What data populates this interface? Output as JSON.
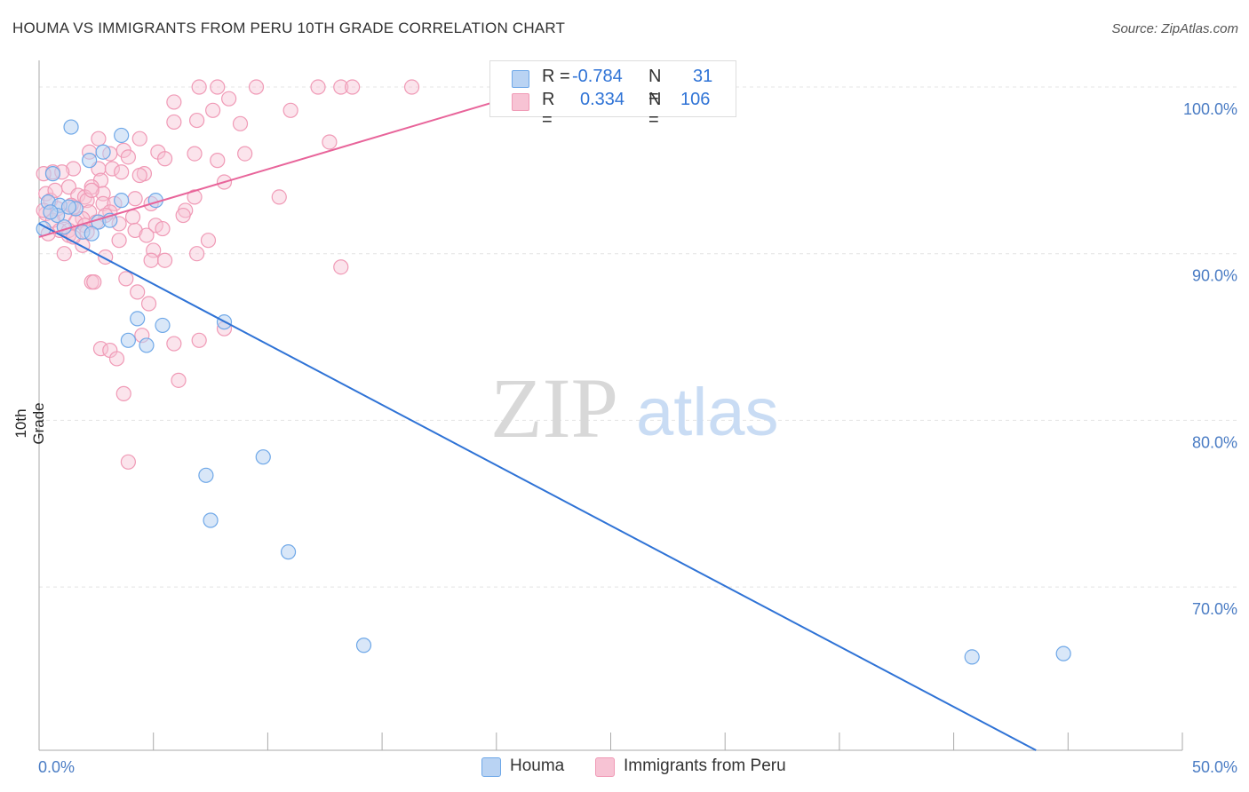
{
  "title": "HOUMA VS IMMIGRANTS FROM PERU 10TH GRADE CORRELATION CHART",
  "source": "Source: ZipAtlas.com",
  "watermark": {
    "zip": "ZIP",
    "atlas": "atlas"
  },
  "colors": {
    "blue": "#6fa8e8",
    "blue_fill": "#b9d3f3",
    "blue_line": "#2f73d6",
    "pink": "#f09ab6",
    "pink_fill": "#f7c3d4",
    "pink_line": "#e8649a",
    "tick_text": "#4a7cc4"
  },
  "legend": {
    "rows": [
      {
        "r_label": "R =",
        "r_value": "-0.784",
        "n_label": "N =",
        "n_value": "31"
      },
      {
        "r_label": "R =",
        "r_value": "0.334",
        "n_label": "N =",
        "n_value": "106"
      }
    ]
  },
  "bottom_legend": {
    "series1": "Houma",
    "series2": "Immigrants from Peru"
  },
  "chart_data": {
    "type": "scatter",
    "title": "HOUMA VS IMMIGRANTS FROM PERU 10TH GRADE CORRELATION CHART",
    "xlabel": "",
    "ylabel": "10th Grade",
    "xlim": [
      0,
      50
    ],
    "ylim": [
      60.2,
      101.6
    ],
    "x_tick_labels": [
      "0.0%",
      "50.0%"
    ],
    "y_ticks": [
      70,
      80,
      90,
      100
    ],
    "y_tick_labels": [
      "70.0%",
      "80.0%",
      "90.0%",
      "100.0%"
    ],
    "series": [
      {
        "name": "Houma",
        "r": -0.784,
        "n": 31,
        "trend": [
          [
            0,
            91.8
          ],
          [
            43.6,
            60.2
          ]
        ],
        "points": [
          [
            1.4,
            97.6
          ],
          [
            3.6,
            97.1
          ],
          [
            2.2,
            95.6
          ],
          [
            2.8,
            96.1
          ],
          [
            0.6,
            94.8
          ],
          [
            0.4,
            93.1
          ],
          [
            0.9,
            92.9
          ],
          [
            1.6,
            92.7
          ],
          [
            3.6,
            93.2
          ],
          [
            5.1,
            93.2
          ],
          [
            0.8,
            92.3
          ],
          [
            1.1,
            91.6
          ],
          [
            2.6,
            91.9
          ],
          [
            3.1,
            92.0
          ],
          [
            0.2,
            91.5
          ],
          [
            1.9,
            91.3
          ],
          [
            2.3,
            91.2
          ],
          [
            4.3,
            86.1
          ],
          [
            5.4,
            85.7
          ],
          [
            8.1,
            85.9
          ],
          [
            3.9,
            84.8
          ],
          [
            4.7,
            84.5
          ],
          [
            7.3,
            76.7
          ],
          [
            9.8,
            77.8
          ],
          [
            7.5,
            74.0
          ],
          [
            10.9,
            72.1
          ],
          [
            14.2,
            66.5
          ],
          [
            40.8,
            65.8
          ],
          [
            44.8,
            66.0
          ],
          [
            0.5,
            92.5
          ],
          [
            1.3,
            92.8
          ]
        ]
      },
      {
        "name": "Immigrants from Peru",
        "r": 0.334,
        "n": 106,
        "trend": [
          [
            0,
            91.0
          ],
          [
            20.4,
            99.3
          ]
        ],
        "points": [
          [
            7.0,
            100.0
          ],
          [
            7.8,
            100.0
          ],
          [
            9.5,
            100.0
          ],
          [
            12.2,
            100.0
          ],
          [
            13.2,
            100.0
          ],
          [
            13.7,
            100.0
          ],
          [
            16.3,
            100.0
          ],
          [
            8.3,
            99.3
          ],
          [
            5.9,
            99.1
          ],
          [
            7.6,
            98.6
          ],
          [
            11.0,
            98.6
          ],
          [
            6.9,
            98.0
          ],
          [
            5.9,
            97.9
          ],
          [
            8.8,
            97.8
          ],
          [
            4.4,
            96.9
          ],
          [
            2.6,
            96.9
          ],
          [
            12.7,
            96.7
          ],
          [
            3.7,
            96.2
          ],
          [
            2.2,
            96.1
          ],
          [
            3.1,
            96.0
          ],
          [
            5.2,
            96.1
          ],
          [
            6.8,
            96.0
          ],
          [
            9.0,
            96.0
          ],
          [
            3.9,
            95.8
          ],
          [
            5.5,
            95.7
          ],
          [
            7.8,
            95.6
          ],
          [
            1.5,
            95.1
          ],
          [
            2.6,
            95.1
          ],
          [
            3.2,
            95.1
          ],
          [
            4.6,
            94.8
          ],
          [
            0.6,
            94.9
          ],
          [
            1.0,
            94.9
          ],
          [
            4.4,
            94.7
          ],
          [
            2.7,
            94.4
          ],
          [
            8.1,
            94.3
          ],
          [
            2.3,
            94.0
          ],
          [
            1.3,
            94.0
          ],
          [
            0.3,
            93.6
          ],
          [
            1.7,
            93.5
          ],
          [
            2.0,
            93.4
          ],
          [
            2.8,
            93.6
          ],
          [
            6.8,
            93.4
          ],
          [
            10.5,
            93.4
          ],
          [
            4.2,
            93.3
          ],
          [
            0.5,
            93.2
          ],
          [
            2.1,
            93.2
          ],
          [
            2.8,
            93.0
          ],
          [
            3.3,
            93.0
          ],
          [
            4.9,
            93.0
          ],
          [
            0.8,
            92.7
          ],
          [
            1.5,
            92.8
          ],
          [
            2.2,
            92.5
          ],
          [
            3.1,
            92.5
          ],
          [
            6.4,
            92.6
          ],
          [
            0.3,
            92.4
          ],
          [
            1.1,
            92.3
          ],
          [
            1.9,
            92.1
          ],
          [
            2.9,
            92.3
          ],
          [
            4.1,
            92.2
          ],
          [
            6.3,
            92.3
          ],
          [
            0.6,
            92.0
          ],
          [
            1.6,
            91.9
          ],
          [
            2.5,
            91.9
          ],
          [
            3.5,
            91.8
          ],
          [
            5.1,
            91.7
          ],
          [
            0.9,
            91.4
          ],
          [
            1.3,
            91.4
          ],
          [
            2.0,
            91.7
          ],
          [
            4.2,
            91.4
          ],
          [
            5.4,
            91.5
          ],
          [
            0.4,
            91.2
          ],
          [
            1.3,
            91.1
          ],
          [
            2.1,
            91.3
          ],
          [
            4.7,
            91.1
          ],
          [
            3.5,
            90.8
          ],
          [
            7.4,
            90.8
          ],
          [
            1.9,
            90.5
          ],
          [
            5.0,
            90.2
          ],
          [
            1.1,
            90.0
          ],
          [
            6.9,
            90.0
          ],
          [
            2.9,
            89.8
          ],
          [
            4.9,
            89.6
          ],
          [
            5.5,
            89.6
          ],
          [
            13.2,
            89.2
          ],
          [
            2.3,
            88.3
          ],
          [
            2.4,
            88.3
          ],
          [
            3.8,
            88.5
          ],
          [
            4.3,
            87.7
          ],
          [
            4.8,
            87.0
          ],
          [
            8.1,
            85.5
          ],
          [
            4.5,
            85.1
          ],
          [
            7.0,
            84.8
          ],
          [
            5.9,
            84.6
          ],
          [
            2.7,
            84.3
          ],
          [
            3.1,
            84.2
          ],
          [
            3.4,
            83.7
          ],
          [
            6.1,
            82.4
          ],
          [
            3.7,
            81.6
          ],
          [
            3.9,
            77.5
          ],
          [
            0.2,
            94.8
          ],
          [
            0.7,
            93.8
          ],
          [
            1.4,
            92.9
          ],
          [
            2.3,
            93.8
          ],
          [
            3.6,
            94.9
          ],
          [
            0.2,
            92.6
          ],
          [
            1.5,
            91.0
          ]
        ]
      }
    ]
  }
}
